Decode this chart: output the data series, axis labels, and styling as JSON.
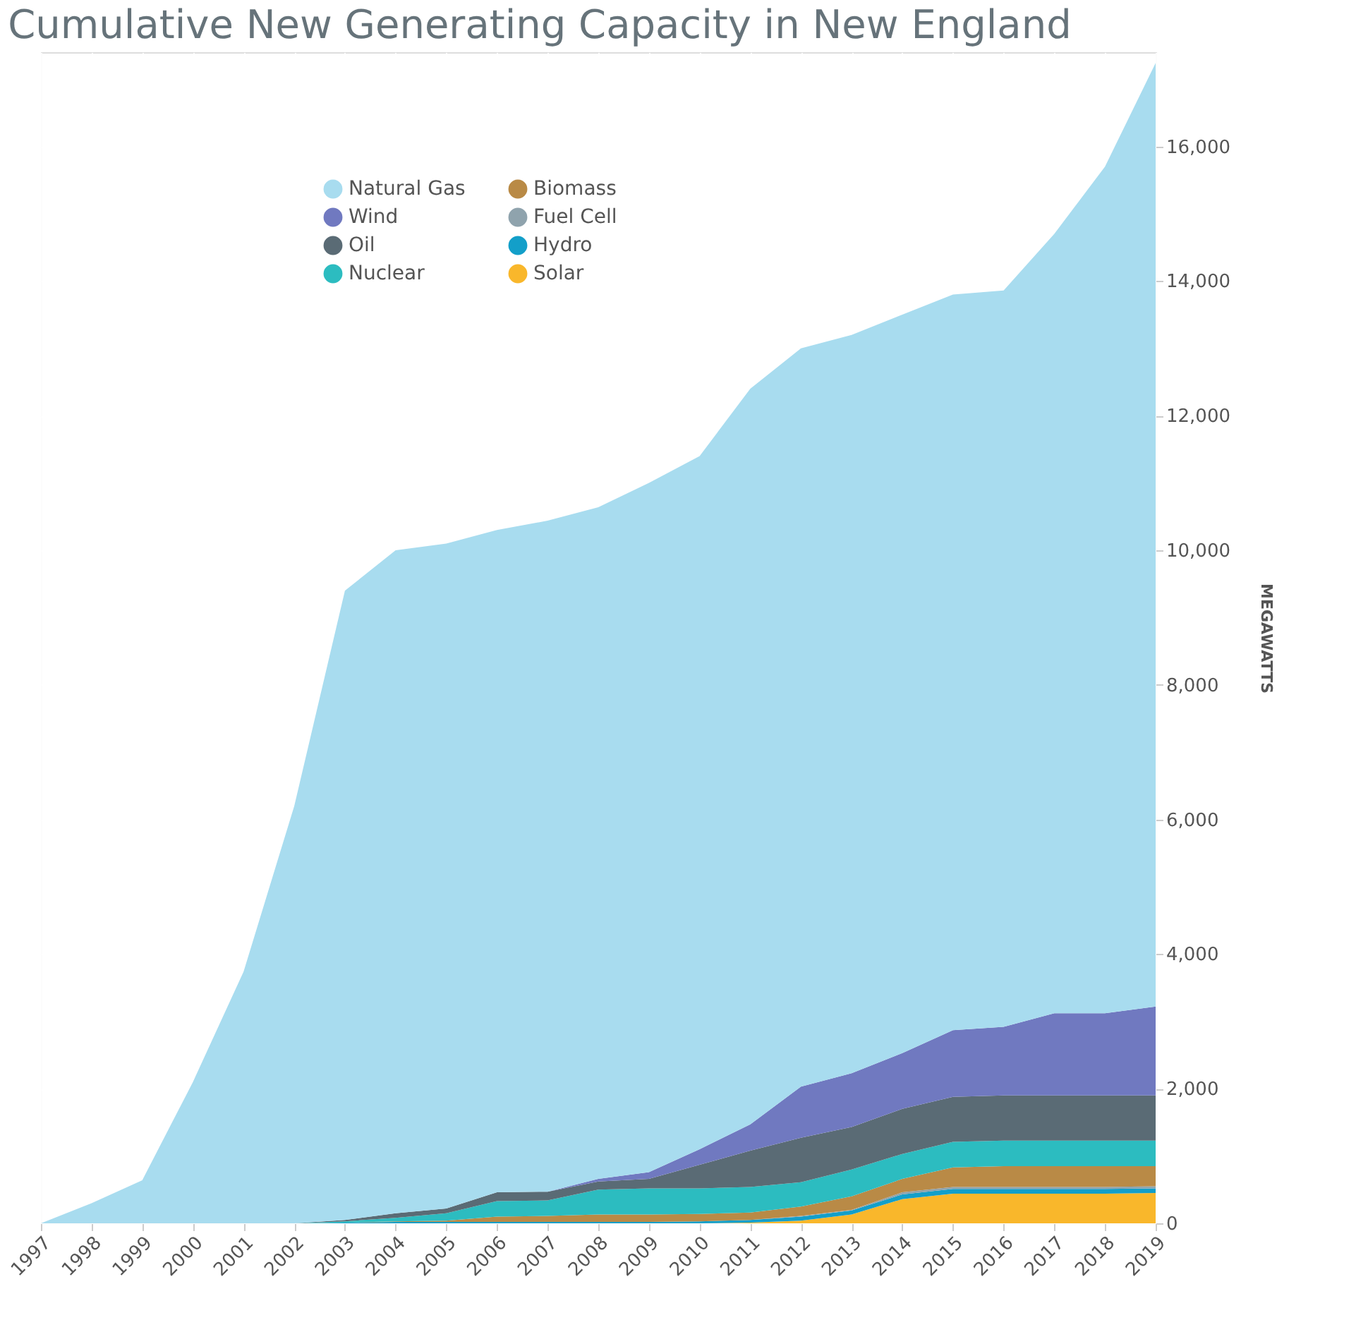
{
  "chart_data": {
    "type": "area",
    "title": "Cumulative New Generating Capacity in New England",
    "ylabel": "MEGAWATTS",
    "stacked": true,
    "categories": [
      "1997",
      "1998",
      "1999",
      "2000",
      "2001",
      "2002",
      "2003",
      "2004",
      "2005",
      "2006",
      "2007",
      "2008",
      "2009",
      "2010",
      "2011",
      "2012",
      "2013",
      "2014",
      "2015",
      "2016",
      "2017",
      "2018",
      "2019"
    ],
    "series": [
      {
        "name": "Solar",
        "color": "#f9b72b",
        "values": [
          0,
          0,
          0,
          0,
          0,
          0,
          0,
          0,
          0,
          0,
          0,
          0,
          0,
          0,
          10,
          40,
          130,
          360,
          440,
          440,
          440,
          440,
          450
        ]
      },
      {
        "name": "Hydro",
        "color": "#139fc9",
        "values": [
          0,
          0,
          0,
          0,
          0,
          0,
          10,
          20,
          20,
          20,
          20,
          20,
          20,
          30,
          40,
          60,
          60,
          70,
          70,
          70,
          70,
          70,
          70
        ]
      },
      {
        "name": "Fuel Cell",
        "color": "#8fa3ad",
        "values": [
          0,
          0,
          0,
          0,
          0,
          0,
          0,
          0,
          0,
          0,
          0,
          0,
          0,
          0,
          0,
          10,
          10,
          30,
          30,
          30,
          30,
          30,
          30
        ]
      },
      {
        "name": "Biomass",
        "color": "#b98a46",
        "values": [
          0,
          0,
          0,
          0,
          0,
          0,
          0,
          10,
          20,
          80,
          90,
          110,
          110,
          110,
          110,
          140,
          200,
          200,
          290,
          310,
          310,
          310,
          300
        ]
      },
      {
        "name": "Nuclear",
        "color": "#2cbcc0",
        "values": [
          0,
          0,
          0,
          0,
          0,
          0,
          20,
          50,
          110,
          230,
          230,
          370,
          390,
          380,
          380,
          360,
          400,
          370,
          380,
          380,
          380,
          380,
          380
        ]
      },
      {
        "name": "Oil",
        "color": "#5a6b75",
        "values": [
          0,
          0,
          0,
          0,
          0,
          0,
          20,
          70,
          70,
          130,
          130,
          120,
          140,
          350,
          540,
          660,
          630,
          670,
          670,
          670,
          670,
          670,
          670
        ]
      },
      {
        "name": "Wind",
        "color": "#7079c0",
        "values": [
          0,
          0,
          0,
          0,
          0,
          0,
          0,
          0,
          0,
          0,
          0,
          40,
          100,
          230,
          390,
          760,
          800,
          830,
          990,
          1020,
          1220,
          1220,
          1320
        ]
      },
      {
        "name": "Natural Gas",
        "color": "#a8dcef",
        "values": [
          0,
          300,
          640,
          2100,
          3740,
          6200,
          9350,
          9850,
          9880,
          9840,
          9970,
          9980,
          10240,
          10300,
          10930,
          10970,
          10970,
          10970,
          10930,
          10940,
          11580,
          12580,
          14020
        ]
      }
    ],
    "ylim": [
      0,
      17400
    ],
    "yticks": [
      0,
      {
        "value": 2000,
        "label": "2,000"
      },
      {
        "value": 4000,
        "label": "4,000"
      },
      {
        "value": 6000,
        "label": "6,000"
      },
      {
        "value": 8000,
        "label": "8,000"
      },
      {
        "value": 10000,
        "label": "10,000"
      },
      {
        "value": 12000,
        "label": "12,000"
      },
      {
        "value": 14000,
        "label": "14,000"
      },
      {
        "value": 16000,
        "label": "16,000"
      }
    ],
    "grid": true,
    "legend": "top left"
  }
}
